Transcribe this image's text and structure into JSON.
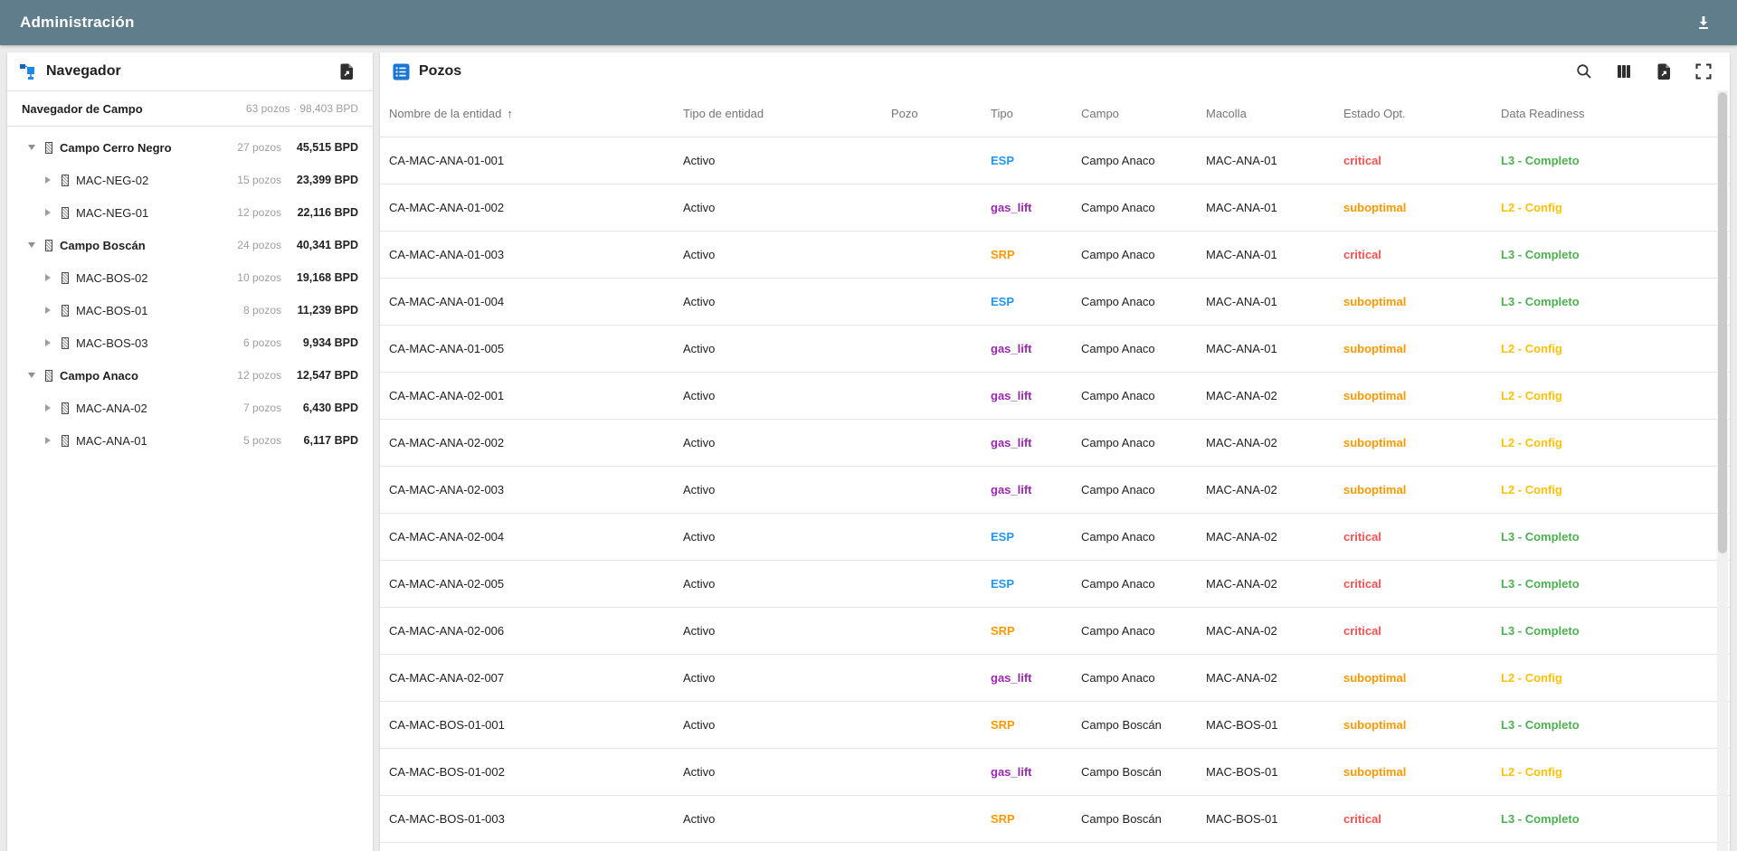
{
  "appbar": {
    "title": "Administración"
  },
  "sidebar": {
    "title": "Navegador",
    "summary": {
      "label": "Navegador de Campo",
      "stats": "63 pozos · 98,403 BPD"
    },
    "tree": [
      {
        "label": "Campo Cerro Negro",
        "level": 0,
        "expanded": true,
        "pozos": "27 pozos",
        "bpd": "45,515 BPD"
      },
      {
        "label": "MAC-NEG-02",
        "level": 1,
        "expanded": false,
        "pozos": "15 pozos",
        "bpd": "23,399 BPD"
      },
      {
        "label": "MAC-NEG-01",
        "level": 1,
        "expanded": false,
        "pozos": "12 pozos",
        "bpd": "22,116 BPD"
      },
      {
        "label": "Campo Boscán",
        "level": 0,
        "expanded": true,
        "pozos": "24 pozos",
        "bpd": "40,341 BPD"
      },
      {
        "label": "MAC-BOS-02",
        "level": 1,
        "expanded": false,
        "pozos": "10 pozos",
        "bpd": "19,168 BPD"
      },
      {
        "label": "MAC-BOS-01",
        "level": 1,
        "expanded": false,
        "pozos": "8 pozos",
        "bpd": "11,239 BPD"
      },
      {
        "label": "MAC-BOS-03",
        "level": 1,
        "expanded": false,
        "pozos": "6 pozos",
        "bpd": "9,934 BPD"
      },
      {
        "label": "Campo Anaco",
        "level": 0,
        "expanded": true,
        "pozos": "12 pozos",
        "bpd": "12,547 BPD"
      },
      {
        "label": "MAC-ANA-02",
        "level": 1,
        "expanded": false,
        "pozos": "7 pozos",
        "bpd": "6,430 BPD"
      },
      {
        "label": "MAC-ANA-01",
        "level": 1,
        "expanded": false,
        "pozos": "5 pozos",
        "bpd": "6,117 BPD"
      }
    ]
  },
  "main": {
    "title": "Pozos",
    "table": {
      "columns": [
        "Nombre de la entidad",
        "Tipo de entidad",
        "Pozo",
        "Tipo",
        "Campo",
        "Macolla",
        "Estado Opt.",
        "Data Readiness"
      ],
      "sort": {
        "column": "Nombre de la entidad",
        "direction": "asc",
        "arrow": "↑"
      },
      "row_fields": [
        "name",
        "tipo_entidad",
        "pozo",
        "tipo",
        "campo",
        "macolla",
        "estado",
        "readiness"
      ],
      "colored_fields": [
        "tipo",
        "estado",
        "readiness"
      ],
      "rows": [
        {
          "name": "CA-MAC-ANA-01-001",
          "tipo_entidad": "Activo",
          "pozo": "",
          "tipo": "ESP",
          "campo": "Campo Anaco",
          "macolla": "MAC-ANA-01",
          "estado": "critical",
          "readiness": "L3 - Completo"
        },
        {
          "name": "CA-MAC-ANA-01-002",
          "tipo_entidad": "Activo",
          "pozo": "",
          "tipo": "gas_lift",
          "campo": "Campo Anaco",
          "macolla": "MAC-ANA-01",
          "estado": "suboptimal",
          "readiness": "L2 - Config"
        },
        {
          "name": "CA-MAC-ANA-01-003",
          "tipo_entidad": "Activo",
          "pozo": "",
          "tipo": "SRP",
          "campo": "Campo Anaco",
          "macolla": "MAC-ANA-01",
          "estado": "critical",
          "readiness": "L3 - Completo"
        },
        {
          "name": "CA-MAC-ANA-01-004",
          "tipo_entidad": "Activo",
          "pozo": "",
          "tipo": "ESP",
          "campo": "Campo Anaco",
          "macolla": "MAC-ANA-01",
          "estado": "suboptimal",
          "readiness": "L3 - Completo"
        },
        {
          "name": "CA-MAC-ANA-01-005",
          "tipo_entidad": "Activo",
          "pozo": "",
          "tipo": "gas_lift",
          "campo": "Campo Anaco",
          "macolla": "MAC-ANA-01",
          "estado": "suboptimal",
          "readiness": "L2 - Config"
        },
        {
          "name": "CA-MAC-ANA-02-001",
          "tipo_entidad": "Activo",
          "pozo": "",
          "tipo": "gas_lift",
          "campo": "Campo Anaco",
          "macolla": "MAC-ANA-02",
          "estado": "suboptimal",
          "readiness": "L2 - Config"
        },
        {
          "name": "CA-MAC-ANA-02-002",
          "tipo_entidad": "Activo",
          "pozo": "",
          "tipo": "gas_lift",
          "campo": "Campo Anaco",
          "macolla": "MAC-ANA-02",
          "estado": "suboptimal",
          "readiness": "L2 - Config"
        },
        {
          "name": "CA-MAC-ANA-02-003",
          "tipo_entidad": "Activo",
          "pozo": "",
          "tipo": "gas_lift",
          "campo": "Campo Anaco",
          "macolla": "MAC-ANA-02",
          "estado": "suboptimal",
          "readiness": "L2 - Config"
        },
        {
          "name": "CA-MAC-ANA-02-004",
          "tipo_entidad": "Activo",
          "pozo": "",
          "tipo": "ESP",
          "campo": "Campo Anaco",
          "macolla": "MAC-ANA-02",
          "estado": "critical",
          "readiness": "L3 - Completo"
        },
        {
          "name": "CA-MAC-ANA-02-005",
          "tipo_entidad": "Activo",
          "pozo": "",
          "tipo": "ESP",
          "campo": "Campo Anaco",
          "macolla": "MAC-ANA-02",
          "estado": "critical",
          "readiness": "L3 - Completo"
        },
        {
          "name": "CA-MAC-ANA-02-006",
          "tipo_entidad": "Activo",
          "pozo": "",
          "tipo": "SRP",
          "campo": "Campo Anaco",
          "macolla": "MAC-ANA-02",
          "estado": "critical",
          "readiness": "L3 - Completo"
        },
        {
          "name": "CA-MAC-ANA-02-007",
          "tipo_entidad": "Activo",
          "pozo": "",
          "tipo": "gas_lift",
          "campo": "Campo Anaco",
          "macolla": "MAC-ANA-02",
          "estado": "suboptimal",
          "readiness": "L2 - Config"
        },
        {
          "name": "CA-MAC-BOS-01-001",
          "tipo_entidad": "Activo",
          "pozo": "",
          "tipo": "SRP",
          "campo": "Campo Boscán",
          "macolla": "MAC-BOS-01",
          "estado": "suboptimal",
          "readiness": "L3 - Completo"
        },
        {
          "name": "CA-MAC-BOS-01-002",
          "tipo_entidad": "Activo",
          "pozo": "",
          "tipo": "gas_lift",
          "campo": "Campo Boscán",
          "macolla": "MAC-BOS-01",
          "estado": "suboptimal",
          "readiness": "L2 - Config"
        },
        {
          "name": "CA-MAC-BOS-01-003",
          "tipo_entidad": "Activo",
          "pozo": "",
          "tipo": "SRP",
          "campo": "Campo Boscán",
          "macolla": "MAC-BOS-01",
          "estado": "critical",
          "readiness": "L3 - Completo"
        }
      ]
    }
  },
  "colors": {
    "appbar-bg": "#607d8b",
    "icon-blue": "#1976d2",
    "icon-dark": "#333333"
  },
  "value_colors": {
    "ESP": "#2196f3",
    "gas_lift": "#9c27b0",
    "SRP": "#ff9800",
    "critical": "#ef5350",
    "suboptimal": "#ff9800",
    "L3 - Completo": "#4caf50",
    "L2 - Config": "#ffc107"
  }
}
